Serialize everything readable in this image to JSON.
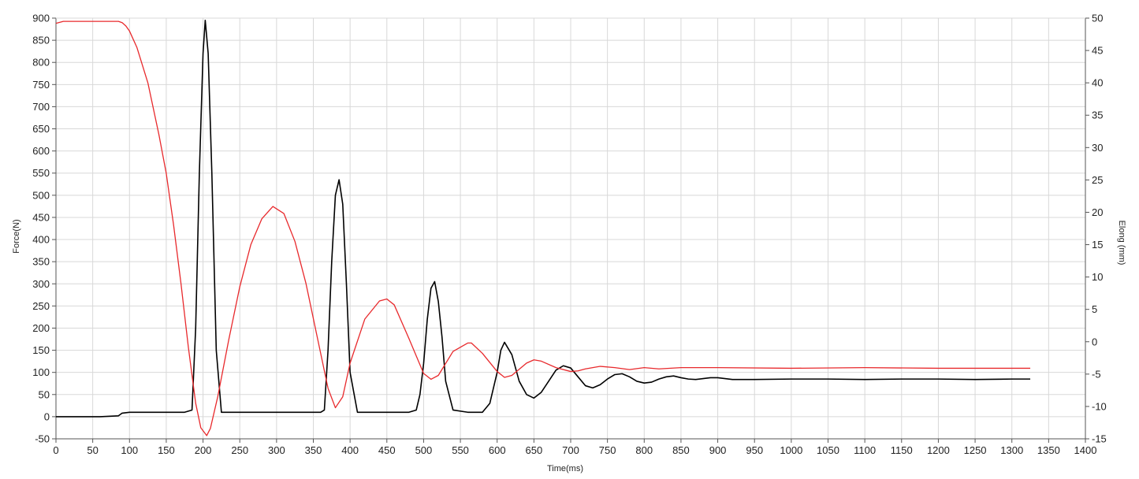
{
  "chart_data": {
    "type": "line",
    "title": "",
    "xlabel": "Time(ms)",
    "ylabel_left": "Force(N)",
    "ylabel_right": "Elong (mm)",
    "xlim": [
      0,
      1400
    ],
    "ylim_left": [
      -50,
      900
    ],
    "ylim_right": [
      -15,
      50
    ],
    "x_ticks": [
      0,
      50,
      100,
      150,
      200,
      250,
      300,
      350,
      400,
      450,
      500,
      550,
      600,
      650,
      700,
      750,
      800,
      850,
      900,
      950,
      1000,
      1050,
      1100,
      1150,
      1200,
      1250,
      1300,
      1350,
      1400
    ],
    "y_left_ticks": [
      -50,
      0,
      50,
      100,
      150,
      200,
      250,
      300,
      350,
      400,
      450,
      500,
      550,
      600,
      650,
      700,
      750,
      800,
      850,
      900
    ],
    "y_right_ticks": [
      -15,
      -10,
      -5,
      0,
      5,
      10,
      15,
      20,
      25,
      30,
      35,
      40,
      45,
      50
    ],
    "grid": true,
    "legend": "none",
    "colors": {
      "force": "#000000",
      "elongation": "#e8292c",
      "grid": "#d8d8d8",
      "axis": "#555555"
    },
    "series": [
      {
        "axis": "left",
        "color": "#000000",
        "x": [
          0,
          60,
          85,
          90,
          100,
          150,
          175,
          185,
          190,
          195,
          200,
          203,
          207,
          212,
          218,
          225,
          250,
          300,
          350,
          360,
          365,
          370,
          375,
          380,
          385,
          390,
          395,
          400,
          410,
          450,
          480,
          490,
          495,
          500,
          505,
          510,
          515,
          520,
          525,
          530,
          540,
          560,
          580,
          590,
          600,
          605,
          610,
          620,
          630,
          640,
          650,
          660,
          670,
          680,
          690,
          700,
          710,
          720,
          730,
          740,
          750,
          760,
          770,
          780,
          790,
          800,
          810,
          820,
          830,
          840,
          850,
          860,
          870,
          880,
          890,
          900,
          910,
          920,
          930,
          940,
          950,
          1000,
          1050,
          1100,
          1150,
          1200,
          1250,
          1300,
          1325
        ],
        "y": [
          0,
          0,
          2,
          8,
          10,
          10,
          10,
          15,
          200,
          550,
          820,
          895,
          820,
          550,
          150,
          10,
          10,
          10,
          10,
          10,
          15,
          150,
          350,
          500,
          535,
          480,
          300,
          100,
          10,
          10,
          10,
          15,
          50,
          120,
          220,
          290,
          305,
          260,
          180,
          80,
          15,
          10,
          10,
          30,
          100,
          150,
          168,
          140,
          80,
          50,
          42,
          55,
          80,
          105,
          115,
          110,
          90,
          70,
          65,
          72,
          85,
          95,
          97,
          90,
          80,
          76,
          78,
          85,
          90,
          92,
          88,
          85,
          84,
          86,
          88,
          88,
          86,
          84,
          84,
          84,
          84,
          85,
          85,
          84,
          85,
          85,
          84,
          85,
          85
        ]
      },
      {
        "axis": "right",
        "color": "#e8292c",
        "x": [
          0,
          10,
          50,
          85,
          90,
          95,
          100,
          110,
          125,
          140,
          150,
          160,
          170,
          180,
          190,
          197,
          205,
          210,
          220,
          235,
          250,
          265,
          280,
          295,
          310,
          325,
          340,
          355,
          370,
          380,
          390,
          400,
          420,
          440,
          450,
          460,
          480,
          500,
          510,
          520,
          540,
          560,
          565,
          580,
          600,
          610,
          620,
          640,
          650,
          660,
          680,
          700,
          710,
          720,
          740,
          760,
          780,
          800,
          820,
          850,
          900,
          1000,
          1100,
          1200,
          1325
        ],
        "y": [
          49.2,
          49.5,
          49.5,
          49.5,
          49.3,
          48.8,
          48,
          45.5,
          40,
          32,
          26,
          18,
          9,
          -0.8,
          -9.5,
          -13.3,
          -14.5,
          -13.4,
          -8.5,
          0.3,
          8.5,
          15,
          19,
          20.9,
          19.8,
          15.5,
          9,
          0.9,
          -7.2,
          -10.2,
          -8.5,
          -3.3,
          3.5,
          6.3,
          6.6,
          5.7,
          0.5,
          -4.9,
          -5.8,
          -5.2,
          -1.5,
          -0.2,
          -0.2,
          -1.8,
          -4.6,
          -5.5,
          -5.2,
          -3.3,
          -2.8,
          -3.0,
          -4.0,
          -4.6,
          -4.5,
          -4.2,
          -3.8,
          -4.0,
          -4.3,
          -4.0,
          -4.2,
          -4.0,
          -4.0,
          -4.1,
          -4.0,
          -4.1,
          -4.1
        ]
      }
    ]
  }
}
